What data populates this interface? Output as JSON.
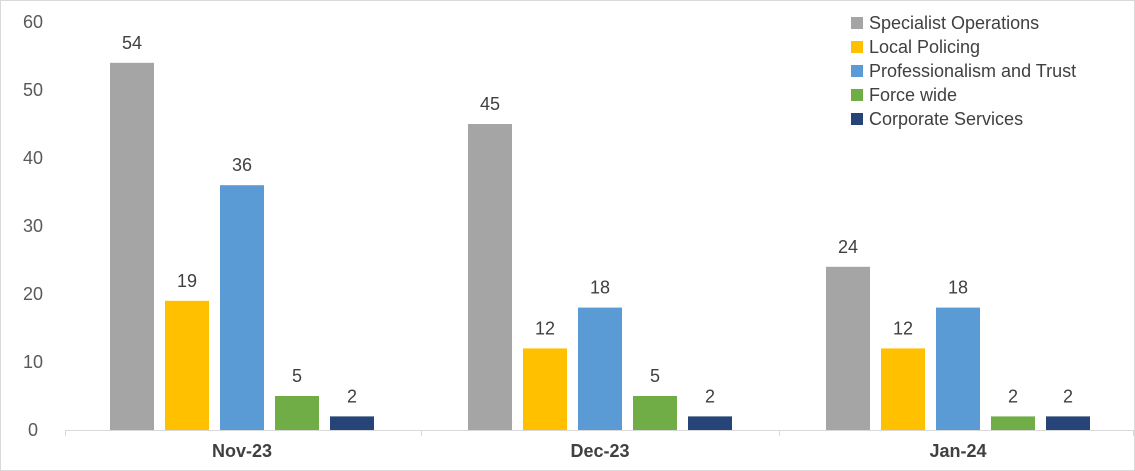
{
  "chart_data": {
    "type": "bar",
    "title": "",
    "xlabel": "",
    "ylabel": "",
    "categories": [
      "Nov-23",
      "Dec-23",
      "Jan-24"
    ],
    "ylim": [
      0,
      60
    ],
    "yticks": [
      0,
      10,
      20,
      30,
      40,
      50,
      60
    ],
    "grid": false,
    "legend_position": "top-right",
    "series": [
      {
        "name": "Specialist Operations",
        "color": "#a5a5a5",
        "values": [
          54,
          45,
          24
        ]
      },
      {
        "name": "Local Policing",
        "color": "#ffc000",
        "values": [
          19,
          12,
          12
        ]
      },
      {
        "name": "Professionalism and Trust",
        "color": "#5b9bd5",
        "values": [
          36,
          18,
          18
        ]
      },
      {
        "name": "Force wide",
        "color": "#70ad47",
        "values": [
          5,
          5,
          2
        ]
      },
      {
        "name": "Corporate Services",
        "color": "#264478",
        "values": [
          2,
          2,
          2
        ]
      }
    ]
  }
}
